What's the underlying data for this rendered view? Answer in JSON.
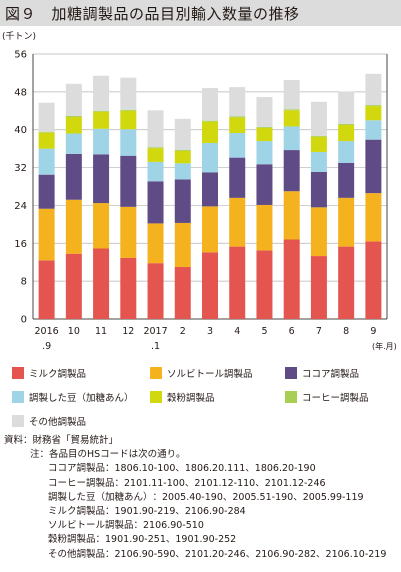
{
  "title": "図９　加糖調製品の品目別輸入数量の推移",
  "chart_data": {
    "type": "bar",
    "stacked": true,
    "y_unit_label": "(千トン)",
    "x_unit_label": "(年.月)",
    "ylim": [
      0,
      56
    ],
    "yticks": [
      "0",
      "8",
      "16",
      "24",
      "32",
      "40",
      "48",
      "56"
    ],
    "ytick_values": [
      0,
      8,
      16,
      24,
      32,
      40,
      48,
      56
    ],
    "grid": true,
    "categories": [
      {
        "top": "2016",
        "bottom": ".9"
      },
      {
        "top": "10",
        "bottom": ""
      },
      {
        "top": "11",
        "bottom": ""
      },
      {
        "top": "12",
        "bottom": ""
      },
      {
        "top": "2017",
        "bottom": ".1"
      },
      {
        "top": "2",
        "bottom": ""
      },
      {
        "top": "3",
        "bottom": ""
      },
      {
        "top": "4",
        "bottom": ""
      },
      {
        "top": "5",
        "bottom": ""
      },
      {
        "top": "6",
        "bottom": ""
      },
      {
        "top": "7",
        "bottom": ""
      },
      {
        "top": "8",
        "bottom": ""
      },
      {
        "top": "9",
        "bottom": ""
      }
    ],
    "series": [
      {
        "name": "ミルク調製品",
        "color": "#e5554f",
        "values": [
          12.4,
          13.8,
          14.9,
          12.9,
          11.8,
          11.0,
          14.1,
          15.3,
          14.5,
          16.8,
          13.3,
          15.3,
          16.4
        ]
      },
      {
        "name": "ソルビトール調製品",
        "color": "#f4b21f",
        "values": [
          10.9,
          11.4,
          9.6,
          10.8,
          8.4,
          9.3,
          9.7,
          10.3,
          9.6,
          10.2,
          10.3,
          10.3,
          10.2
        ]
      },
      {
        "name": "ココア調製品",
        "color": "#5f4b86",
        "values": [
          7.2,
          9.7,
          10.3,
          10.8,
          8.9,
          9.2,
          7.2,
          8.5,
          8.6,
          8.7,
          7.5,
          7.4,
          11.3
        ]
      },
      {
        "name": "調製した豆（加糖あん）",
        "color": "#9fd3e6",
        "values": [
          5.5,
          4.3,
          5.4,
          5.6,
          4.1,
          3.4,
          6.2,
          5.2,
          4.9,
          5.0,
          4.2,
          4.6,
          4.1
        ]
      },
      {
        "name": "穀粉調製品",
        "color": "#d1d80e",
        "values": [
          3.4,
          3.5,
          3.6,
          3.9,
          2.9,
          2.6,
          4.5,
          3.3,
          2.8,
          3.4,
          3.2,
          3.4,
          3.0
        ]
      },
      {
        "name": "コーヒー調製品",
        "color": "#a8cf54",
        "values": [
          0.1,
          0.2,
          0.2,
          0.2,
          0.2,
          0.2,
          0.2,
          0.2,
          0.2,
          0.2,
          0.2,
          0.2,
          0.2
        ]
      },
      {
        "name": "その他調製品",
        "color": "#dcdcdc",
        "values": [
          6.2,
          6.8,
          7.4,
          6.8,
          7.8,
          6.6,
          6.9,
          6.2,
          6.3,
          6.2,
          7.2,
          6.9,
          6.6
        ]
      }
    ]
  },
  "notes": {
    "source": "資料：財務省「貿易統計」",
    "note_head": "注：各品目のHSコードは次の通り。",
    "codes": [
      {
        "label": "ココア調製品",
        "value": "：1806.10-100、1806.20.111、1806.20-190"
      },
      {
        "label": "コーヒー調製品",
        "value": "：2101.11-100、2101.12-110、2101.12-246"
      },
      {
        "label": "調製した豆（加糖あん）",
        "value": "：2005.40-190、2005.51-190、2005.99-119"
      },
      {
        "label": "ミルク調製品",
        "value": "：1901.90-219、2106.90-284"
      },
      {
        "label": "ソルビトール調製品",
        "value": "：2106.90-510"
      },
      {
        "label": "穀粉調製品",
        "value": "：1901.90-251、1901.90-252"
      },
      {
        "label": "その他調製品",
        "value": "：2106.90-590、2101.20-246、2106.90-282、2106.10-219"
      }
    ]
  }
}
